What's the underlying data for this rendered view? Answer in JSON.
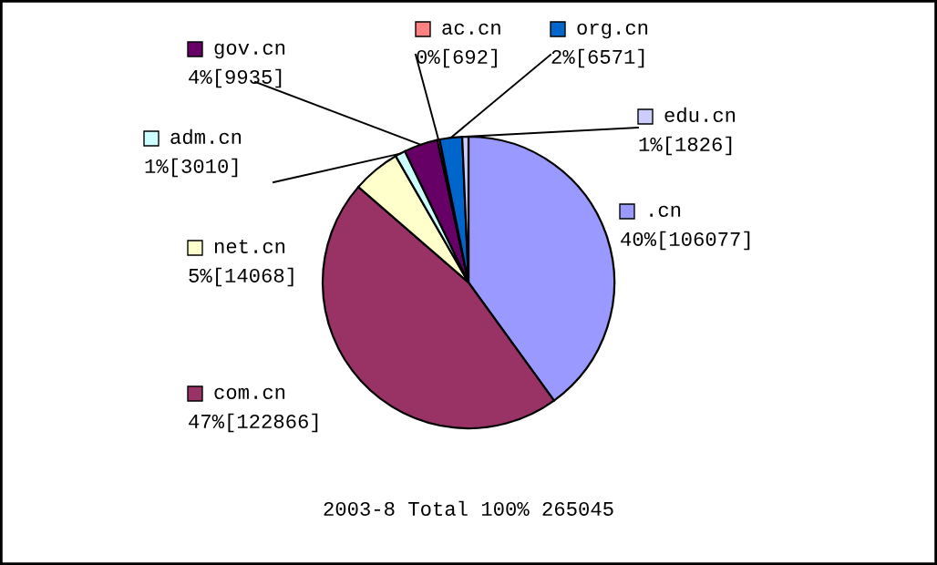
{
  "chart_data": {
    "type": "pie",
    "title": "2003-8 Total 100% 265045",
    "categories": [
      ".cn",
      "com.cn",
      "net.cn",
      "adm.cn",
      "gov.cn",
      "ac.cn",
      "org.cn",
      "edu.cn"
    ],
    "values": [
      106077,
      122866,
      14068,
      3010,
      9935,
      692,
      6571,
      1826
    ],
    "value_labels": [
      "40%[106077]",
      "47%[122866]",
      "5%[14068]",
      "1%[3010]",
      "4%[9935]",
      "0%[692]",
      "2%[6571]",
      "1%[1826]"
    ],
    "legend": "top",
    "colors": [
      "#9999ff",
      "#993366",
      "#ffffcc",
      "#ccffff",
      "#660066",
      "#ff8080",
      "#0066cc",
      "#ccccff"
    ]
  }
}
